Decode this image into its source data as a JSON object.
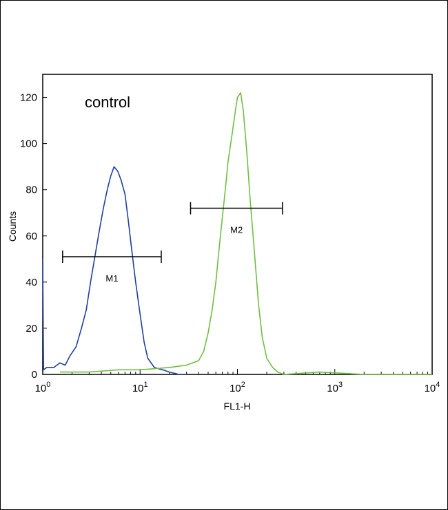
{
  "chart_data": {
    "type": "line",
    "xlabel": "FL1-H",
    "ylabel": "Counts",
    "x_scale": "log",
    "xlim": [
      1,
      10000
    ],
    "ylim": [
      0,
      130
    ],
    "x_ticks": [
      {
        "value": 1,
        "base": "10",
        "exp": "0"
      },
      {
        "value": 10,
        "base": "10",
        "exp": "1"
      },
      {
        "value": 100,
        "base": "10",
        "exp": "2"
      },
      {
        "value": 1000,
        "base": "10",
        "exp": "3"
      },
      {
        "value": 10000,
        "base": "10",
        "exp": "4"
      }
    ],
    "y_ticks": [
      0,
      20,
      40,
      60,
      80,
      100,
      120
    ],
    "annotation": "control",
    "grid": false,
    "series": [
      {
        "color": "#1f3f9f",
        "points": [
          [
            1.0,
            50
          ],
          [
            1.02,
            2
          ],
          [
            1.1,
            3
          ],
          [
            1.3,
            3
          ],
          [
            1.5,
            5
          ],
          [
            1.7,
            4
          ],
          [
            1.9,
            8
          ],
          [
            2.2,
            12
          ],
          [
            2.5,
            20
          ],
          [
            2.8,
            28
          ],
          [
            3.1,
            40
          ],
          [
            3.4,
            50
          ],
          [
            3.8,
            62
          ],
          [
            4.2,
            72
          ],
          [
            4.6,
            80
          ],
          [
            5.0,
            86
          ],
          [
            5.4,
            90
          ],
          [
            5.9,
            88
          ],
          [
            6.4,
            84
          ],
          [
            7.0,
            78
          ],
          [
            7.6,
            66
          ],
          [
            8.2,
            54
          ],
          [
            9.0,
            40
          ],
          [
            10.0,
            26
          ],
          [
            11.0,
            14
          ],
          [
            12.0,
            7
          ],
          [
            14.0,
            3
          ],
          [
            17.0,
            2
          ],
          [
            20.0,
            1
          ],
          [
            25.0,
            0
          ],
          [
            30.0,
            0
          ]
        ]
      },
      {
        "color": "#6fbf3f",
        "points": [
          [
            1.5,
            1
          ],
          [
            3.0,
            1
          ],
          [
            6.0,
            2
          ],
          [
            10.0,
            2
          ],
          [
            20.0,
            3
          ],
          [
            30.0,
            4
          ],
          [
            40.0,
            6
          ],
          [
            45.0,
            10
          ],
          [
            50.0,
            18
          ],
          [
            55.0,
            28
          ],
          [
            60.0,
            40
          ],
          [
            65.0,
            55
          ],
          [
            70.0,
            68
          ],
          [
            75.0,
            80
          ],
          [
            80.0,
            92
          ],
          [
            88.0,
            104
          ],
          [
            95.0,
            114
          ],
          [
            100.0,
            120
          ],
          [
            108.0,
            122
          ],
          [
            115.0,
            114
          ],
          [
            125.0,
            96
          ],
          [
            135.0,
            76
          ],
          [
            150.0,
            52
          ],
          [
            165.0,
            30
          ],
          [
            180.0,
            16
          ],
          [
            200.0,
            7
          ],
          [
            230.0,
            3
          ],
          [
            260.0,
            1
          ],
          [
            300.0,
            0
          ],
          [
            700.0,
            1
          ],
          [
            2000.0,
            0
          ],
          [
            10000.0,
            0
          ]
        ]
      }
    ],
    "markers": [
      {
        "label": "M1",
        "x_range": [
          1.6,
          16.5
        ],
        "y": 51
      },
      {
        "label": "M2",
        "x_range": [
          33.0,
          290.0
        ],
        "y": 72
      }
    ]
  }
}
